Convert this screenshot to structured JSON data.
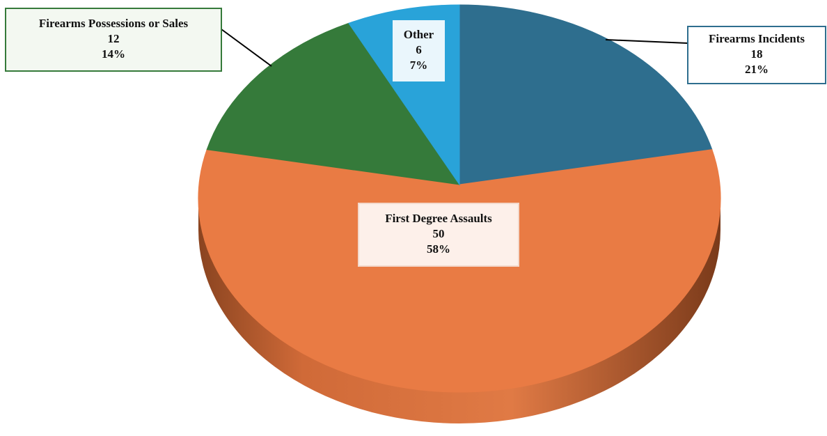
{
  "chart_data": {
    "type": "pie",
    "categories": [
      "Firearms Incidents",
      "First Degree Assaults",
      "Firearms Possessions or Sales",
      "Other"
    ],
    "values": [
      18,
      50,
      12,
      6
    ],
    "percent_labels": [
      "21%",
      "58%",
      "14%",
      "7%"
    ],
    "colors": [
      "#2e6e8e",
      "#e97b44",
      "#357a3a",
      "#29a3d9"
    ]
  }
}
